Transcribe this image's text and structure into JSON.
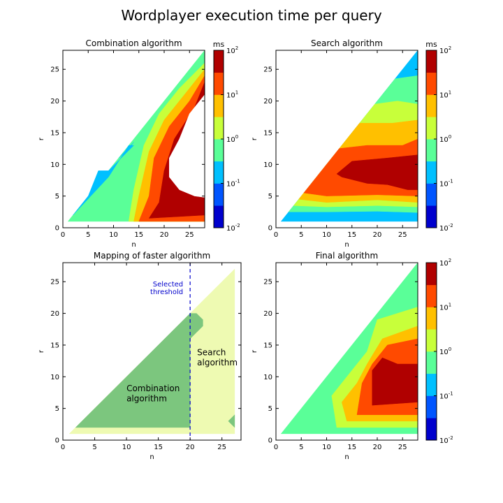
{
  "figure": {
    "title": "Wordplayer execution time per query"
  },
  "colors": {
    "levels": [
      "#0000cd",
      "#0055ff",
      "#00c0ff",
      "#5aff98",
      "#c8ff3a",
      "#ffc000",
      "#ff4a00",
      "#b00000"
    ],
    "faster_combination": "#7cc67e",
    "faster_search": "#eefab2",
    "threshold_line": "#0000cc"
  },
  "chart_data": [
    {
      "id": "combination",
      "type": "heatmap",
      "title": "Combination algorithm",
      "xlabel": "n",
      "ylabel": "r",
      "xlim": [
        0,
        28
      ],
      "ylim": [
        0,
        28
      ],
      "xticks": [
        0,
        5,
        10,
        15,
        20,
        25
      ],
      "yticks": [
        0,
        5,
        10,
        15,
        20,
        25
      ],
      "colorbar": {
        "unit": "ms",
        "scale": "log",
        "range": [
          0.01,
          100
        ],
        "ticks": [
          {
            "base": "10",
            "exp": "-2"
          },
          {
            "base": "10",
            "exp": "-1"
          },
          {
            "base": "10",
            "exp": "0"
          },
          {
            "base": "10",
            "exp": "1"
          },
          {
            "base": "10",
            "exp": "2"
          }
        ]
      },
      "regions": [
        {
          "level": 3,
          "points": [
            [
              1,
              1
            ],
            [
              28,
              28
            ],
            [
              28,
              1
            ]
          ]
        },
        {
          "level": 2,
          "points": [
            [
              2,
              2
            ],
            [
              9,
              8
            ],
            [
              13,
              13
            ],
            [
              14,
              13
            ],
            [
              9,
              9
            ],
            [
              7,
              9
            ],
            [
              5,
              5
            ],
            [
              3,
              3
            ]
          ]
        },
        {
          "level": 2,
          "points": [
            [
              11,
              11
            ],
            [
              14,
              13.5
            ],
            [
              13,
              12.5
            ]
          ]
        },
        {
          "level": 4,
          "points": [
            [
              13,
              1
            ],
            [
              14,
              6
            ],
            [
              16,
              13
            ],
            [
              19,
              18
            ],
            [
              23,
              22
            ],
            [
              28,
              26
            ],
            [
              28,
              1
            ]
          ]
        },
        {
          "level": 5,
          "points": [
            [
              14,
              1
            ],
            [
              15,
              5
            ],
            [
              17,
              12
            ],
            [
              20,
              17
            ],
            [
              24,
              21
            ],
            [
              28,
              25
            ],
            [
              28,
              1
            ]
          ]
        },
        {
          "level": 6,
          "points": [
            [
              15,
              1
            ],
            [
              17,
              5
            ],
            [
              18,
              11
            ],
            [
              21,
              16
            ],
            [
              25,
              20
            ],
            [
              28,
              24
            ],
            [
              28,
              1
            ]
          ]
        },
        {
          "level": 7,
          "points": [
            [
              17,
              1.5
            ],
            [
              19,
              4
            ],
            [
              20,
              9
            ],
            [
              22,
              14
            ],
            [
              26,
              19
            ],
            [
              28,
              23
            ],
            [
              28,
              2
            ]
          ]
        },
        {
          "level": -1,
          "points": [
            [
              28,
              21
            ],
            [
              25,
              18
            ],
            [
              23,
              14
            ],
            [
              21,
              11
            ],
            [
              21,
              8
            ],
            [
              23,
              6
            ],
            [
              26,
              5
            ],
            [
              28,
              4.8
            ]
          ]
        }
      ]
    },
    {
      "id": "search",
      "type": "heatmap",
      "title": "Search algorithm",
      "xlabel": "n",
      "ylabel": "r",
      "xlim": [
        0,
        28
      ],
      "ylim": [
        0,
        28
      ],
      "xticks": [
        0,
        5,
        10,
        15,
        20,
        25
      ],
      "yticks": [
        0,
        5,
        10,
        15,
        20,
        25
      ],
      "colorbar": {
        "unit": "ms",
        "scale": "log",
        "range": [
          0.01,
          100
        ],
        "ticks": [
          {
            "base": "10",
            "exp": "-2"
          },
          {
            "base": "10",
            "exp": "-1"
          },
          {
            "base": "10",
            "exp": "0"
          },
          {
            "base": "10",
            "exp": "1"
          },
          {
            "base": "10",
            "exp": "2"
          }
        ]
      },
      "regions": [
        {
          "level": 2,
          "points": [
            [
              1,
              1
            ],
            [
              28,
              28
            ],
            [
              28,
              1
            ]
          ]
        },
        {
          "level": 3,
          "points": [
            [
              2.5,
              2.5
            ],
            [
              23.5,
              23.5
            ],
            [
              28,
              24
            ],
            [
              28,
              2.4
            ],
            [
              20,
              2.6
            ],
            [
              10,
              2.5
            ]
          ]
        },
        {
          "level": 4,
          "points": [
            [
              3.5,
              3.5
            ],
            [
              19.5,
              19.5
            ],
            [
              24,
              20
            ],
            [
              28,
              19.5
            ],
            [
              28,
              3.3
            ],
            [
              20,
              3.5
            ],
            [
              10,
              3.3
            ]
          ]
        },
        {
          "level": 5,
          "points": [
            [
              4.5,
              4.5
            ],
            [
              16.5,
              16.5
            ],
            [
              23,
              16.5
            ],
            [
              28,
              17
            ],
            [
              28,
              4
            ],
            [
              20,
              4.4
            ],
            [
              10,
              4
            ]
          ]
        },
        {
          "level": 6,
          "points": [
            [
              5.5,
              5.5
            ],
            [
              12.5,
              12.5
            ],
            [
              18,
              13
            ],
            [
              25,
              13
            ],
            [
              28,
              14
            ],
            [
              28,
              5
            ],
            [
              20,
              5.2
            ],
            [
              10,
              5
            ]
          ]
        },
        {
          "level": 7,
          "points": [
            [
              12,
              8.5
            ],
            [
              15,
              10.5
            ],
            [
              22,
              11
            ],
            [
              28,
              11.5
            ],
            [
              28,
              6
            ],
            [
              26,
              6
            ],
            [
              22,
              6.8
            ],
            [
              18,
              7
            ],
            [
              13,
              8
            ]
          ]
        }
      ]
    },
    {
      "id": "mapping",
      "type": "heatmap",
      "title": "Mapping of faster algorithm",
      "xlabel": "n",
      "ylabel": "r",
      "xlim": [
        0,
        28
      ],
      "ylim": [
        0,
        28
      ],
      "xticks": [
        0,
        5,
        10,
        15,
        20,
        25
      ],
      "yticks": [
        0,
        5,
        10,
        15,
        20,
        25
      ],
      "annotations": {
        "threshold": {
          "x": 20,
          "label_line1": "Selected",
          "label_line2": "threshold"
        },
        "combination_line1": "Combination",
        "combination_line2": "algorithm",
        "search_line1": "Search",
        "search_line2": "algorithm"
      },
      "regions": [
        {
          "class": "search",
          "points": [
            [
              1,
              1
            ],
            [
              27,
              27
            ],
            [
              27,
              1
            ]
          ]
        },
        {
          "class": "combination",
          "points": [
            [
              2,
              2
            ],
            [
              20,
              20
            ],
            [
              21,
              20
            ],
            [
              22,
              19
            ],
            [
              22,
              18
            ],
            [
              21,
              17
            ],
            [
              20,
              16
            ],
            [
              20,
              2
            ]
          ]
        },
        {
          "class": "combination",
          "points": [
            [
              26,
              3
            ],
            [
              27,
              4
            ],
            [
              27,
              2
            ]
          ]
        }
      ]
    },
    {
      "id": "final",
      "type": "heatmap",
      "title": "Final algorithm",
      "xlabel": "n",
      "ylabel": "r",
      "xlim": [
        0,
        28
      ],
      "ylim": [
        0,
        28
      ],
      "xticks": [
        0,
        5,
        10,
        15,
        20,
        25
      ],
      "yticks": [
        0,
        5,
        10,
        15,
        20,
        25
      ],
      "colorbar": {
        "unit": "",
        "scale": "log",
        "range": [
          0.01,
          100
        ],
        "ticks": [
          {
            "base": "10",
            "exp": "-2"
          },
          {
            "base": "10",
            "exp": "-1"
          },
          {
            "base": "10",
            "exp": "0"
          },
          {
            "base": "10",
            "exp": "1"
          },
          {
            "base": "10",
            "exp": "2"
          }
        ]
      },
      "regions": [
        {
          "level": 3,
          "points": [
            [
              1,
              1
            ],
            [
              28,
              28
            ],
            [
              28,
              1
            ]
          ]
        },
        {
          "level": 4,
          "points": [
            [
              12,
              2
            ],
            [
              11,
              7
            ],
            [
              14,
              10
            ],
            [
              18,
              14
            ],
            [
              20,
              19
            ],
            [
              28,
              21
            ],
            [
              28,
              2
            ]
          ]
        },
        {
          "level": 5,
          "points": [
            [
              14,
              3
            ],
            [
              13,
              6
            ],
            [
              16,
              9
            ],
            [
              18,
              12
            ],
            [
              21,
              16
            ],
            [
              28,
              18
            ],
            [
              28,
              3
            ]
          ]
        },
        {
          "level": 6,
          "points": [
            [
              16,
              4
            ],
            [
              17,
              9
            ],
            [
              19,
              12
            ],
            [
              22,
              15
            ],
            [
              28,
              16
            ],
            [
              28,
              4
            ]
          ]
        },
        {
          "level": 7,
          "points": [
            [
              19,
              5.5
            ],
            [
              19,
              11
            ],
            [
              21,
              13
            ],
            [
              24,
              12
            ],
            [
              28,
              12
            ],
            [
              28,
              6
            ]
          ]
        }
      ]
    }
  ]
}
